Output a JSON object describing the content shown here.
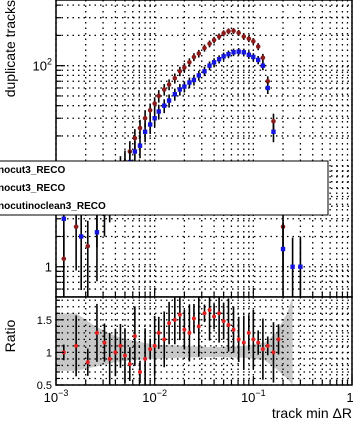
{
  "chart_data": [
    {
      "type": "scatter",
      "panel": "main",
      "xlabel": "track min ΔR",
      "ylabel": "duplicate tracks",
      "xscale": "log",
      "yscale": "log",
      "xlim": [
        0.001,
        1
      ],
      "ylim": [
        0.5,
        450
      ],
      "grid": true,
      "x_ticks": [
        {
          "value": 0.001,
          "base": "10",
          "exp": "−3"
        },
        {
          "value": 0.01,
          "base": "10",
          "exp": "−2"
        },
        {
          "value": 0.1,
          "base": "10",
          "exp": "−1"
        },
        {
          "value": 1,
          "base": "1",
          "exp": ""
        }
      ],
      "y_ticks": [
        {
          "value": 100,
          "base": "10",
          "exp": "2"
        },
        {
          "value": 1,
          "base": "1",
          "exp": ""
        }
      ],
      "legend": {
        "placement": "middle-left",
        "entries": [
          "nocut3_RECO",
          "nocut3_RECO",
          "nocutinoclean3_RECO"
        ]
      },
      "series": [
        {
          "color": "#8b1a1a",
          "marker": "circle",
          "points": [
            [
              0.0012,
              1.2
            ],
            [
              0.0016,
              2.5
            ],
            [
              0.0021,
              1.6
            ],
            [
              0.0026,
              3.4
            ],
            [
              0.0031,
              5.5
            ],
            [
              0.0035,
              6.2
            ],
            [
              0.004,
              8
            ],
            [
              0.0045,
              9.5
            ],
            [
              0.005,
              11
            ],
            [
              0.0056,
              14
            ],
            [
              0.0063,
              19
            ],
            [
              0.0071,
              24
            ],
            [
              0.008,
              30
            ],
            [
              0.009,
              36
            ],
            [
              0.01,
              42
            ],
            [
              0.011,
              50
            ],
            [
              0.0125,
              58
            ],
            [
              0.014,
              65
            ],
            [
              0.016,
              75
            ],
            [
              0.018,
              88
            ],
            [
              0.02,
              96
            ],
            [
              0.0225,
              108
            ],
            [
              0.025,
              122
            ],
            [
              0.028,
              132
            ],
            [
              0.032,
              150
            ],
            [
              0.036,
              165
            ],
            [
              0.04,
              180
            ],
            [
              0.045,
              195
            ],
            [
              0.05,
              210
            ],
            [
              0.056,
              220
            ],
            [
              0.063,
              222
            ],
            [
              0.071,
              212
            ],
            [
              0.08,
              195
            ],
            [
              0.09,
              185
            ],
            [
              0.1,
              175
            ],
            [
              0.112,
              155
            ],
            [
              0.125,
              120
            ],
            [
              0.14,
              70
            ],
            [
              0.16,
              28
            ],
            [
              0.18,
              8
            ],
            [
              0.2,
              2.5
            ]
          ]
        },
        {
          "color": "#1515e0",
          "marker": "square",
          "points": [
            [
              0.0012,
              3
            ],
            [
              0.0018,
              2
            ],
            [
              0.0026,
              2.2
            ],
            [
              0.0031,
              4
            ],
            [
              0.0035,
              5
            ],
            [
              0.004,
              6.5
            ],
            [
              0.0045,
              8
            ],
            [
              0.005,
              9
            ],
            [
              0.0056,
              11
            ],
            [
              0.0063,
              14
            ],
            [
              0.0071,
              16
            ],
            [
              0.008,
              22
            ],
            [
              0.009,
              26
            ],
            [
              0.01,
              30
            ],
            [
              0.011,
              35
            ],
            [
              0.0125,
              40
            ],
            [
              0.014,
              45
            ],
            [
              0.016,
              52
            ],
            [
              0.018,
              58
            ],
            [
              0.02,
              62
            ],
            [
              0.0225,
              68
            ],
            [
              0.025,
              72
            ],
            [
              0.028,
              80
            ],
            [
              0.032,
              88
            ],
            [
              0.036,
              100
            ],
            [
              0.04,
              108
            ],
            [
              0.045,
              116
            ],
            [
              0.05,
              124
            ],
            [
              0.056,
              130
            ],
            [
              0.063,
              136
            ],
            [
              0.071,
              138
            ],
            [
              0.08,
              136
            ],
            [
              0.09,
              128
            ],
            [
              0.1,
              122
            ],
            [
              0.112,
              114
            ],
            [
              0.125,
              100
            ],
            [
              0.14,
              60
            ],
            [
              0.16,
              22
            ],
            [
              0.18,
              6
            ],
            [
              0.2,
              1.5
            ],
            [
              0.25,
              1
            ],
            [
              0.3,
              1
            ]
          ]
        }
      ]
    },
    {
      "type": "scatter",
      "panel": "ratio",
      "ylabel": "Ratio",
      "xscale": "log",
      "xlim": [
        0.001,
        1
      ],
      "ylim": [
        0.5,
        1.85
      ],
      "grid": true,
      "y_ticks": [
        {
          "value": 0.5,
          "label": "0.5"
        },
        {
          "value": 1,
          "label": "1"
        },
        {
          "value": 1.5,
          "label": "1.5"
        }
      ],
      "band_color": "#c8c8c8",
      "band": [
        [
          0.001,
          0.72,
          1.6
        ],
        [
          0.0016,
          0.72,
          1.6
        ],
        [
          0.0025,
          0.78,
          1.4
        ],
        [
          0.004,
          0.85,
          1.25
        ],
        [
          0.006,
          0.88,
          1.18
        ],
        [
          0.01,
          0.9,
          1.12
        ],
        [
          0.02,
          0.92,
          1.1
        ],
        [
          0.04,
          0.93,
          1.08
        ],
        [
          0.08,
          0.92,
          1.1
        ],
        [
          0.13,
          0.88,
          1.15
        ],
        [
          0.17,
          0.75,
          1.3
        ],
        [
          0.22,
          0.6,
          1.6
        ],
        [
          0.25,
          0.5,
          1.85
        ]
      ],
      "series": [
        {
          "color": "#e02020",
          "marker": "circle",
          "points": [
            [
              0.0012,
              1.0
            ],
            [
              0.0016,
              1.1
            ],
            [
              0.0021,
              0.85
            ],
            [
              0.0026,
              1.3
            ],
            [
              0.0031,
              1.15
            ],
            [
              0.0035,
              0.9
            ],
            [
              0.004,
              1.0
            ],
            [
              0.0045,
              1.1
            ],
            [
              0.005,
              0.95
            ],
            [
              0.0056,
              0.82
            ],
            [
              0.0063,
              1.25
            ],
            [
              0.0071,
              0.7
            ],
            [
              0.008,
              0.9
            ],
            [
              0.009,
              1.05
            ],
            [
              0.01,
              1.1
            ],
            [
              0.011,
              1.3
            ],
            [
              0.0125,
              1.2
            ],
            [
              0.014,
              1.45
            ],
            [
              0.016,
              1.5
            ],
            [
              0.018,
              1.58
            ],
            [
              0.02,
              1.35
            ],
            [
              0.0225,
              1.3
            ],
            [
              0.025,
              1.52
            ],
            [
              0.028,
              1.4
            ],
            [
              0.032,
              1.6
            ],
            [
              0.036,
              1.65
            ],
            [
              0.04,
              1.55
            ],
            [
              0.045,
              1.6
            ],
            [
              0.05,
              1.48
            ],
            [
              0.056,
              1.42
            ],
            [
              0.063,
              1.35
            ],
            [
              0.071,
              1.2
            ],
            [
              0.08,
              1.15
            ],
            [
              0.09,
              1.3
            ],
            [
              0.1,
              1.2
            ],
            [
              0.112,
              1.15
            ],
            [
              0.125,
              1.05
            ],
            [
              0.14,
              1.1
            ],
            [
              0.16,
              1.0
            ],
            [
              0.18,
              1.2
            ]
          ]
        }
      ]
    }
  ]
}
